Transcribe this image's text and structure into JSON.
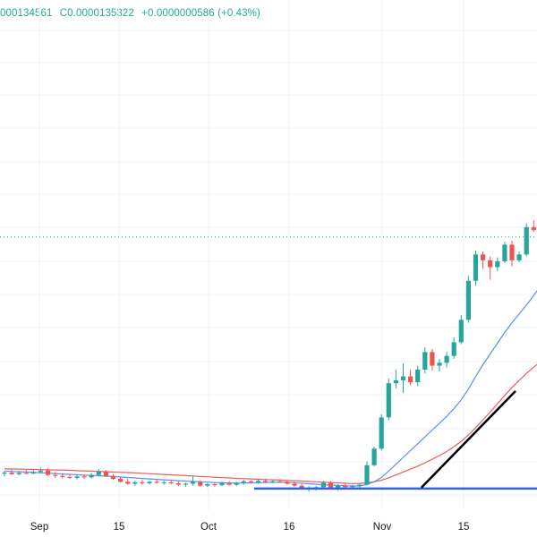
{
  "legend": {
    "high": "000134561",
    "close": "C0.0000135322",
    "change": "+0.0000000586 (+0.43%)"
  },
  "colors": {
    "up": "#26a69a",
    "down": "#ef5350",
    "ma_fast": "#5b8ff9",
    "ma_slow": "#f05a5a",
    "hline": "#2962ff",
    "trendline": "#000000",
    "grid": "#f0f3fa",
    "alert_line": "#26a69a"
  },
  "chart_data": {
    "type": "candlestick",
    "x_tick_labels": [
      "Sep",
      "15",
      "Oct",
      "16",
      "Nov",
      "15"
    ],
    "grid": true,
    "legend": "top-left",
    "candles": [
      [
        0.4873,
        0.4903,
        0.4845,
        0.4884
      ],
      [
        0.4884,
        0.4915,
        0.4862,
        0.4867
      ],
      [
        0.4867,
        0.4903,
        0.4858,
        0.488
      ],
      [
        0.488,
        0.492,
        0.487,
        0.4875
      ],
      [
        0.4875,
        0.491,
        0.4865,
        0.489
      ],
      [
        0.489,
        0.4935,
        0.488,
        0.4905
      ],
      [
        0.4905,
        0.493,
        0.485,
        0.486
      ],
      [
        0.486,
        0.489,
        0.483,
        0.485
      ],
      [
        0.485,
        0.488,
        0.4825,
        0.484
      ],
      [
        0.484,
        0.487,
        0.482,
        0.483
      ],
      [
        0.483,
        0.486,
        0.4815,
        0.4845
      ],
      [
        0.4845,
        0.487,
        0.482,
        0.4835
      ],
      [
        0.4835,
        0.488,
        0.4825,
        0.486
      ],
      [
        0.486,
        0.492,
        0.4845,
        0.4895
      ],
      [
        0.4895,
        0.491,
        0.484,
        0.485
      ],
      [
        0.485,
        0.487,
        0.481,
        0.482
      ],
      [
        0.482,
        0.484,
        0.478,
        0.479
      ],
      [
        0.479,
        0.482,
        0.476,
        0.477
      ],
      [
        0.477,
        0.48,
        0.475,
        0.4785
      ],
      [
        0.4785,
        0.481,
        0.476,
        0.4775
      ],
      [
        0.4775,
        0.48,
        0.476,
        0.479
      ],
      [
        0.479,
        0.481,
        0.477,
        0.478
      ],
      [
        0.478,
        0.48,
        0.476,
        0.4785
      ],
      [
        0.4785,
        0.48,
        0.4765,
        0.4775
      ],
      [
        0.4775,
        0.4795,
        0.4745,
        0.476
      ],
      [
        0.476,
        0.478,
        0.474,
        0.477
      ],
      [
        0.477,
        0.485,
        0.475,
        0.479
      ],
      [
        0.479,
        0.4805,
        0.474,
        0.475
      ],
      [
        0.475,
        0.4775,
        0.4735,
        0.4765
      ],
      [
        0.4765,
        0.4785,
        0.474,
        0.4755
      ],
      [
        0.4755,
        0.479,
        0.4745,
        0.478
      ],
      [
        0.478,
        0.4795,
        0.475,
        0.476
      ],
      [
        0.476,
        0.479,
        0.4745,
        0.478
      ],
      [
        0.478,
        0.481,
        0.476,
        0.4795
      ],
      [
        0.4795,
        0.4805,
        0.477,
        0.4785
      ],
      [
        0.4785,
        0.481,
        0.477,
        0.48
      ],
      [
        0.48,
        0.482,
        0.478,
        0.479
      ],
      [
        0.479,
        0.4805,
        0.4775,
        0.4795
      ],
      [
        0.4795,
        0.4815,
        0.478,
        0.479
      ],
      [
        0.479,
        0.48,
        0.476,
        0.477
      ],
      [
        0.477,
        0.479,
        0.474,
        0.475
      ],
      [
        0.475,
        0.477,
        0.471,
        0.472
      ],
      [
        0.472,
        0.4745,
        0.469,
        0.4725
      ],
      [
        0.4725,
        0.475,
        0.47,
        0.4735
      ],
      [
        0.4735,
        0.48,
        0.4715,
        0.478
      ],
      [
        0.478,
        0.4795,
        0.472,
        0.473
      ],
      [
        0.473,
        0.4765,
        0.47,
        0.475
      ],
      [
        0.475,
        0.477,
        0.472,
        0.4735
      ],
      [
        0.4735,
        0.476,
        0.4715,
        0.4745
      ],
      [
        0.4745,
        0.4775,
        0.4725,
        0.476
      ],
      [
        0.476,
        0.5,
        0.475,
        0.496
      ],
      [
        0.496,
        0.515,
        0.495,
        0.513
      ],
      [
        0.513,
        0.548,
        0.511,
        0.545
      ],
      [
        0.545,
        0.585,
        0.542,
        0.58
      ],
      [
        0.58,
        0.594,
        0.575,
        0.583
      ],
      [
        0.583,
        0.6,
        0.57,
        0.587
      ],
      [
        0.587,
        0.594,
        0.578,
        0.581
      ],
      [
        0.581,
        0.598,
        0.577,
        0.594
      ],
      [
        0.594,
        0.617,
        0.59,
        0.612
      ],
      [
        0.612,
        0.615,
        0.593,
        0.598
      ],
      [
        0.598,
        0.605,
        0.592,
        0.601
      ],
      [
        0.601,
        0.612,
        0.596,
        0.608
      ],
      [
        0.608,
        0.627,
        0.605,
        0.622
      ],
      [
        0.622,
        0.65,
        0.62,
        0.645
      ],
      [
        0.645,
        0.69,
        0.642,
        0.685
      ],
      [
        0.685,
        0.716,
        0.68,
        0.712
      ],
      [
        0.712,
        0.715,
        0.697,
        0.706
      ],
      [
        0.706,
        0.71,
        0.686,
        0.699
      ],
      [
        0.699,
        0.709,
        0.695,
        0.705
      ],
      [
        0.705,
        0.725,
        0.703,
        0.722
      ],
      [
        0.722,
        0.726,
        0.7,
        0.706
      ],
      [
        0.706,
        0.715,
        0.704,
        0.712
      ],
      [
        0.712,
        0.744,
        0.71,
        0.74
      ],
      [
        0.74,
        0.747,
        0.735,
        0.737
      ],
      [
        0.737,
        0.742,
        0.732,
        0.734
      ],
      [
        0.734,
        0.738,
        0.73,
        0.736
      ],
      [
        0.736,
        0.739,
        0.731,
        0.733
      ],
      [
        0.733,
        0.74,
        0.73,
        0.738
      ]
    ],
    "ma_fast": [
      0.49,
      0.4896,
      0.4893,
      0.4889,
      0.4886,
      0.4882,
      0.4878,
      0.4874,
      0.487,
      0.4866,
      0.4862,
      0.4858,
      0.4855,
      0.4852,
      0.4848,
      0.4844,
      0.4839,
      0.4834,
      0.4829,
      0.4824,
      0.4819,
      0.4815,
      0.481,
      0.4806,
      0.4801,
      0.4797,
      0.4793,
      0.479,
      0.4786,
      0.4783,
      0.4781,
      0.4778,
      0.4776,
      0.4777,
      0.4779,
      0.4781,
      0.4783,
      0.4784,
      0.4785,
      0.4784,
      0.4781,
      0.4776,
      0.477,
      0.4764,
      0.476,
      0.4756,
      0.4752,
      0.4749,
      0.4746,
      0.4748,
      0.4762,
      0.479,
      0.4835,
      0.49,
      0.497,
      0.504,
      0.511,
      0.518,
      0.525,
      0.532,
      0.539,
      0.546,
      0.554,
      0.563,
      0.574,
      0.587,
      0.599,
      0.61,
      0.621,
      0.632,
      0.642,
      0.651,
      0.66,
      0.67,
      0.68,
      0.689,
      0.696,
      0.703
    ],
    "ma_slow": [
      0.4922,
      0.4921,
      0.492,
      0.4918,
      0.4917,
      0.4915,
      0.4913,
      0.4911,
      0.4909,
      0.4907,
      0.4904,
      0.4902,
      0.4899,
      0.4896,
      0.4893,
      0.489,
      0.4887,
      0.4884,
      0.4881,
      0.4877,
      0.4873,
      0.4869,
      0.4865,
      0.4861,
      0.4857,
      0.4853,
      0.4849,
      0.4845,
      0.4841,
      0.4837,
      0.4833,
      0.4829,
      0.4825,
      0.4822,
      0.4819,
      0.4816,
      0.4813,
      0.481,
      0.4807,
      0.4804,
      0.4801,
      0.4797,
      0.4793,
      0.479,
      0.4786,
      0.4782,
      0.4779,
      0.4775,
      0.4772,
      0.4773,
      0.478,
      0.479,
      0.4806,
      0.483,
      0.486,
      0.489,
      0.492,
      0.495,
      0.4985,
      0.502,
      0.506,
      0.51,
      0.515,
      0.5205,
      0.527,
      0.5345,
      0.5425,
      0.5505,
      0.559,
      0.5675,
      0.5755,
      0.583,
      0.59,
      0.5965,
      0.6025,
      0.608,
      0.613,
      0.618
    ],
    "horizontal_level": 0.472,
    "dotted_level": 0.73,
    "trendline": {
      "from_index": 57.5,
      "from_price": 0.473,
      "to_index": 70.5,
      "to_price": 0.572
    }
  }
}
